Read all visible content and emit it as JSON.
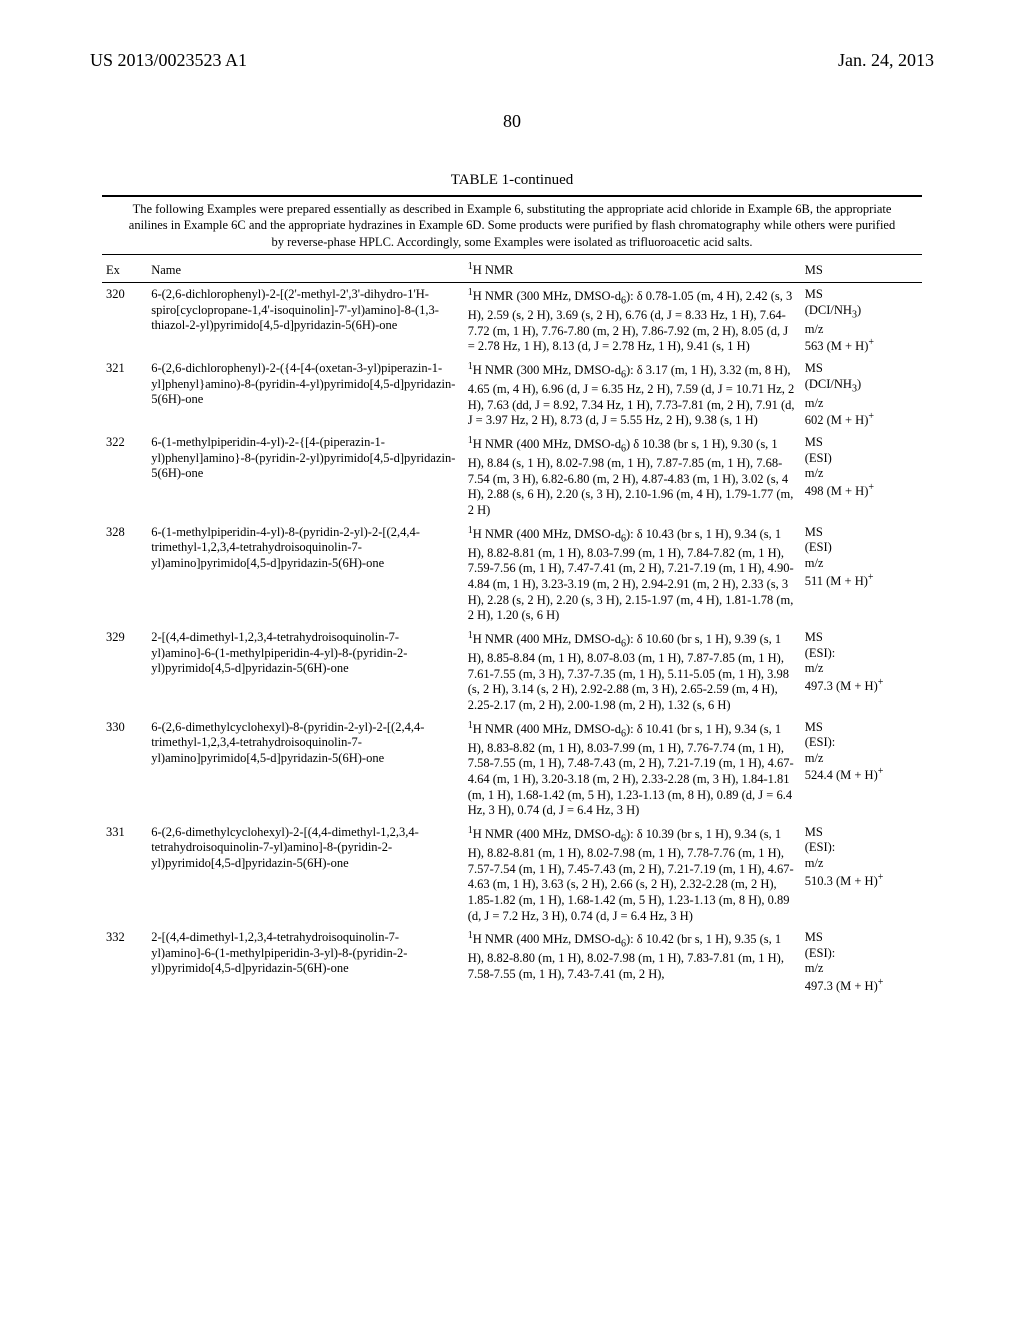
{
  "header": {
    "left": "US 2013/0023523 A1",
    "right": "Jan. 24, 2013"
  },
  "page_number": "80",
  "table": {
    "title": "TABLE 1-continued",
    "caption": "The following Examples were prepared essentially as described in Example 6, substituting the appropriate acid chloride in Example 6B, the appropriate anilines in Example 6C and the appropriate hydrazines in Example 6D. Some products were purified by flash chromatography while others were purified by reverse-phase HPLC. Accordingly, some Examples were isolated as trifluoroacetic acid salts.",
    "columns": {
      "ex": "Ex",
      "name": "Name",
      "nmr": "1H NMR",
      "ms": "MS"
    },
    "rows": [
      {
        "ex": "320",
        "name": "6-(2,6-dichlorophenyl)-2-[(2'-methyl-2',3'-dihydro-1'H-spiro[cyclopropane-1,4'-isoquinolin]-7'-yl)amino]-8-(1,3-thiazol-2-yl)pyrimido[4,5-d]pyridazin-5(6H)-one",
        "nmr": "1H NMR (300 MHz, DMSO-d6): δ 0.78-1.05 (m, 4 H), 2.42 (s, 3 H), 2.59 (s, 2 H), 3.69 (s, 2 H), 6.76 (d, J = 8.33 Hz, 1 H), 7.64-7.72 (m, 1 H), 7.76-7.80 (m, 2 H), 7.86-7.92 (m, 2 H), 8.05 (d, J = 2.78 Hz, 1 H), 8.13 (d, J = 2.78 Hz, 1 H), 9.41 (s, 1 H)",
        "ms": "MS (DCI/NH3) m/z 563 (M + H)+"
      },
      {
        "ex": "321",
        "name": "6-(2,6-dichlorophenyl)-2-({4-[4-(oxetan-3-yl)piperazin-1-yl]phenyl}amino)-8-(pyridin-4-yl)pyrimido[4,5-d]pyridazin-5(6H)-one",
        "nmr": "1H NMR (300 MHz, DMSO-d6): δ 3.17 (m, 1 H), 3.32 (m, 8 H), 4.65 (m, 4 H), 6.96 (d, J = 6.35 Hz, 2 H), 7.59 (d, J = 10.71 Hz, 2 H), 7.63 (dd, J = 8.92, 7.34 Hz, 1 H), 7.73-7.81 (m, 2 H), 7.91 (d, J = 3.97 Hz, 2 H), 8.73 (d, J = 5.55 Hz, 2 H), 9.38 (s, 1 H)",
        "ms": "MS (DCI/NH3) m/z 602 (M + H)+"
      },
      {
        "ex": "322",
        "name": "6-(1-methylpiperidin-4-yl)-2-{[4-(piperazin-1-yl)phenyl]amino}-8-(pyridin-2-yl)pyrimido[4,5-d]pyridazin-5(6H)-one",
        "nmr": "1H NMR (400 MHz, DMSO-d6) δ 10.38 (br s, 1 H), 9.30 (s, 1 H), 8.84 (s, 1 H), 8.02-7.98 (m, 1 H), 7.87-7.85 (m, 1 H), 7.68-7.54 (m, 3 H), 6.82-6.80 (m, 2 H), 4.87-4.83 (m, 1 H), 3.02 (s, 4 H), 2.88 (s, 6 H), 2.20 (s, 3 H), 2.10-1.96 (m, 4 H), 1.79-1.77 (m, 2 H)",
        "ms": "MS (ESI) m/z 498 (M + H)+"
      },
      {
        "ex": "328",
        "name": "6-(1-methylpiperidin-4-yl)-8-(pyridin-2-yl)-2-[(2,4,4-trimethyl-1,2,3,4-tetrahydroisoquinolin-7-yl)amino]pyrimido[4,5-d]pyridazin-5(6H)-one",
        "nmr": "1H NMR (400 MHz, DMSO-d6): δ 10.43 (br s, 1 H), 9.34 (s, 1 H), 8.82-8.81 (m, 1 H), 8.03-7.99 (m, 1 H), 7.84-7.82 (m, 1 H), 7.59-7.56 (m, 1 H), 7.47-7.41 (m, 2 H), 7.21-7.19 (m, 1 H), 4.90-4.84 (m, 1 H), 3.23-3.19 (m, 2 H), 2.94-2.91 (m, 2 H), 2.33 (s, 3 H), 2.28 (s, 2 H), 2.20 (s, 3 H), 2.15-1.97 (m, 4 H), 1.81-1.78 (m, 2 H), 1.20 (s, 6 H)",
        "ms": "MS (ESI) m/z 511 (M + H)+"
      },
      {
        "ex": "329",
        "name": "2-[(4,4-dimethyl-1,2,3,4-tetrahydroisoquinolin-7-yl)amino]-6-(1-methylpiperidin-4-yl)-8-(pyridin-2-yl)pyrimido[4,5-d]pyridazin-5(6H)-one",
        "nmr": "1H NMR (400 MHz, DMSO-d6): δ 10.60 (br s, 1 H), 9.39 (s, 1 H), 8.85-8.84 (m, 1 H), 8.07-8.03 (m, 1 H), 7.87-7.85 (m, 1 H), 7.61-7.55 (m, 3 H), 7.37-7.35 (m, 1 H), 5.11-5.05 (m, 1 H), 3.98 (s, 2 H), 3.14 (s, 2 H), 2.92-2.88 (m, 3 H), 2.65-2.59 (m, 4 H), 2.25-2.17 (m, 2 H), 2.00-1.98 (m, 2 H), 1.32 (s, 6 H)",
        "ms": "MS (ESI): m/z 497.3 (M + H)+"
      },
      {
        "ex": "330",
        "name": "6-(2,6-dimethylcyclohexyl)-8-(pyridin-2-yl)-2-[(2,4,4-trimethyl-1,2,3,4-tetrahydroisoquinolin-7-yl)amino]pyrimido[4,5-d]pyridazin-5(6H)-one",
        "nmr": "1H NMR (400 MHz, DMSO-d6): δ 10.41 (br s, 1 H), 9.34 (s, 1 H), 8.83-8.82 (m, 1 H), 8.03-7.99 (m, 1 H), 7.76-7.74 (m, 1 H), 7.58-7.55 (m, 1 H), 7.48-7.43 (m, 2 H), 7.21-7.19 (m, 1 H), 4.67-4.64 (m, 1 H), 3.20-3.18 (m, 2 H), 2.33-2.28 (m, 3 H), 1.84-1.81 (m, 1 H), 1.68-1.42 (m, 5 H), 1.23-1.13 (m, 8 H), 0.89 (d, J = 6.4 Hz, 3 H), 0.74 (d, J = 6.4 Hz, 3 H)",
        "ms": "MS (ESI): m/z 524.4 (M + H)+"
      },
      {
        "ex": "331",
        "name": "6-(2,6-dimethylcyclohexyl)-2-[(4,4-dimethyl-1,2,3,4-tetrahydroisoquinolin-7-yl)amino]-8-(pyridin-2-yl)pyrimido[4,5-d]pyridazin-5(6H)-one",
        "nmr": "1H NMR (400 MHz, DMSO-d6): δ 10.39 (br s, 1 H), 9.34 (s, 1 H), 8.82-8.81 (m, 1 H), 8.02-7.98 (m, 1 H), 7.78-7.76 (m, 1 H), 7.57-7.54 (m, 1 H), 7.45-7.43 (m, 2 H), 7.21-7.19 (m, 1 H), 4.67-4.63 (m, 1 H), 3.63 (s, 2 H), 2.66 (s, 2 H), 2.32-2.28 (m, 2 H), 1.85-1.82 (m, 1 H), 1.68-1.42 (m, 5 H), 1.23-1.13 (m, 8 H), 0.89 (d, J = 7.2 Hz, 3 H), 0.74 (d, J = 6.4 Hz, 3 H)",
        "ms": "MS (ESI): m/z 510.3 (M + H)+"
      },
      {
        "ex": "332",
        "name": "2-[(4,4-dimethyl-1,2,3,4-tetrahydroisoquinolin-7-yl)amino]-6-(1-methylpiperidin-3-yl)-8-(pyridin-2-yl)pyrimido[4,5-d]pyridazin-5(6H)-one",
        "nmr": "1H NMR (400 MHz, DMSO-d6): δ 10.42 (br s, 1 H), 9.35 (s, 1 H), 8.82-8.80 (m, 1 H), 8.02-7.98 (m, 1 H), 7.83-7.81 (m, 1 H), 7.58-7.55 (m, 1 H), 7.43-7.41 (m, 2 H),",
        "ms": "MS (ESI): m/z 497.3 (M + H)+"
      }
    ]
  }
}
